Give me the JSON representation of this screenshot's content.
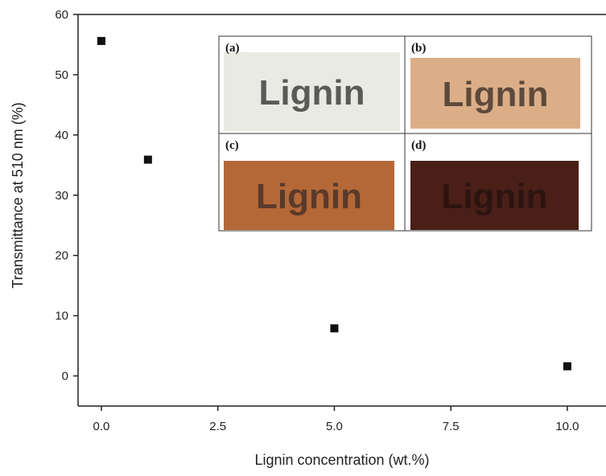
{
  "chart_data": {
    "type": "scatter",
    "x_label": "Lignin concentration (wt.%)",
    "y_label": "Transmittance at 510 nm (%)",
    "x": [
      0,
      1,
      5,
      10
    ],
    "values": [
      55.6,
      35.9,
      7.9,
      1.6
    ],
    "color": "#111111",
    "xlim": [
      -0.5,
      10.83
    ],
    "ylim": [
      -5,
      60
    ],
    "xticks": [
      {
        "value": 0,
        "label": "0.0"
      },
      2.5,
      {
        "value": 5,
        "label": "5.0"
      },
      7.5,
      {
        "value": 10,
        "label": "10.0"
      }
    ],
    "yticks": [
      0,
      10,
      20,
      30,
      40,
      50,
      60
    ],
    "inset": {
      "panels": [
        {
          "label": "(a)",
          "text": "Lignin",
          "color": "#e9eae3",
          "text_color": "#5a5a58"
        },
        {
          "label": "(b)",
          "text": "Lignin",
          "color": "#dcae88",
          "text_color": "#5d4a3c"
        },
        {
          "label": "(c)",
          "text": "Lignin",
          "color": "#b46838",
          "text_color": "#5a3a2a"
        },
        {
          "label": "(d)",
          "text": "Lignin",
          "color": "#4a1f18",
          "text_color": "#2c1410"
        }
      ]
    }
  }
}
